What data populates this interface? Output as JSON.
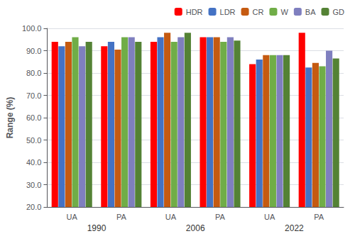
{
  "chart_data": {
    "type": "bar",
    "categories": [
      "UA",
      "PA",
      "UA",
      "PA",
      "UA",
      "PA"
    ],
    "annotations": [
      "1990",
      "2006",
      "2022"
    ],
    "ylabel": "Range (%)",
    "series": [
      {
        "name": "HDR",
        "color": "#ff0000",
        "values": [
          94.0,
          92.0,
          94.0,
          96.0,
          84.0,
          98.0
        ]
      },
      {
        "name": "LDR",
        "color": "#4472c4",
        "values": [
          92.0,
          94.0,
          96.0,
          96.0,
          86.0,
          82.5
        ]
      },
      {
        "name": "CR",
        "color": "#c55a11",
        "values": [
          94.0,
          90.5,
          98.0,
          96.0,
          88.0,
          84.5
        ]
      },
      {
        "name": "W",
        "color": "#70ad47",
        "values": [
          96.0,
          96.0,
          94.0,
          94.0,
          88.0,
          83.0
        ]
      },
      {
        "name": "BA",
        "color": "#7f7fbf",
        "values": [
          92.0,
          96.0,
          96.0,
          96.0,
          88.0,
          90.0
        ]
      },
      {
        "name": "GD",
        "color": "#548235",
        "values": [
          94.0,
          94.0,
          98.0,
          94.5,
          88.0,
          86.5
        ]
      }
    ],
    "ylim": [
      20.0,
      100.0
    ],
    "yticks": [
      {
        "value": 20,
        "label": "20.0"
      },
      {
        "value": 30,
        "label": "30.0"
      },
      {
        "value": 40,
        "label": "40.0"
      },
      {
        "value": 50,
        "label": "50.0"
      },
      {
        "value": 60,
        "label": "60.0"
      },
      {
        "value": 70,
        "label": "70.0"
      },
      {
        "value": 80,
        "label": "80.0"
      },
      {
        "value": 90,
        "label": "90.0"
      },
      {
        "value": 100,
        "label": "100.0"
      }
    ],
    "grid": true,
    "legend": "upper right"
  }
}
